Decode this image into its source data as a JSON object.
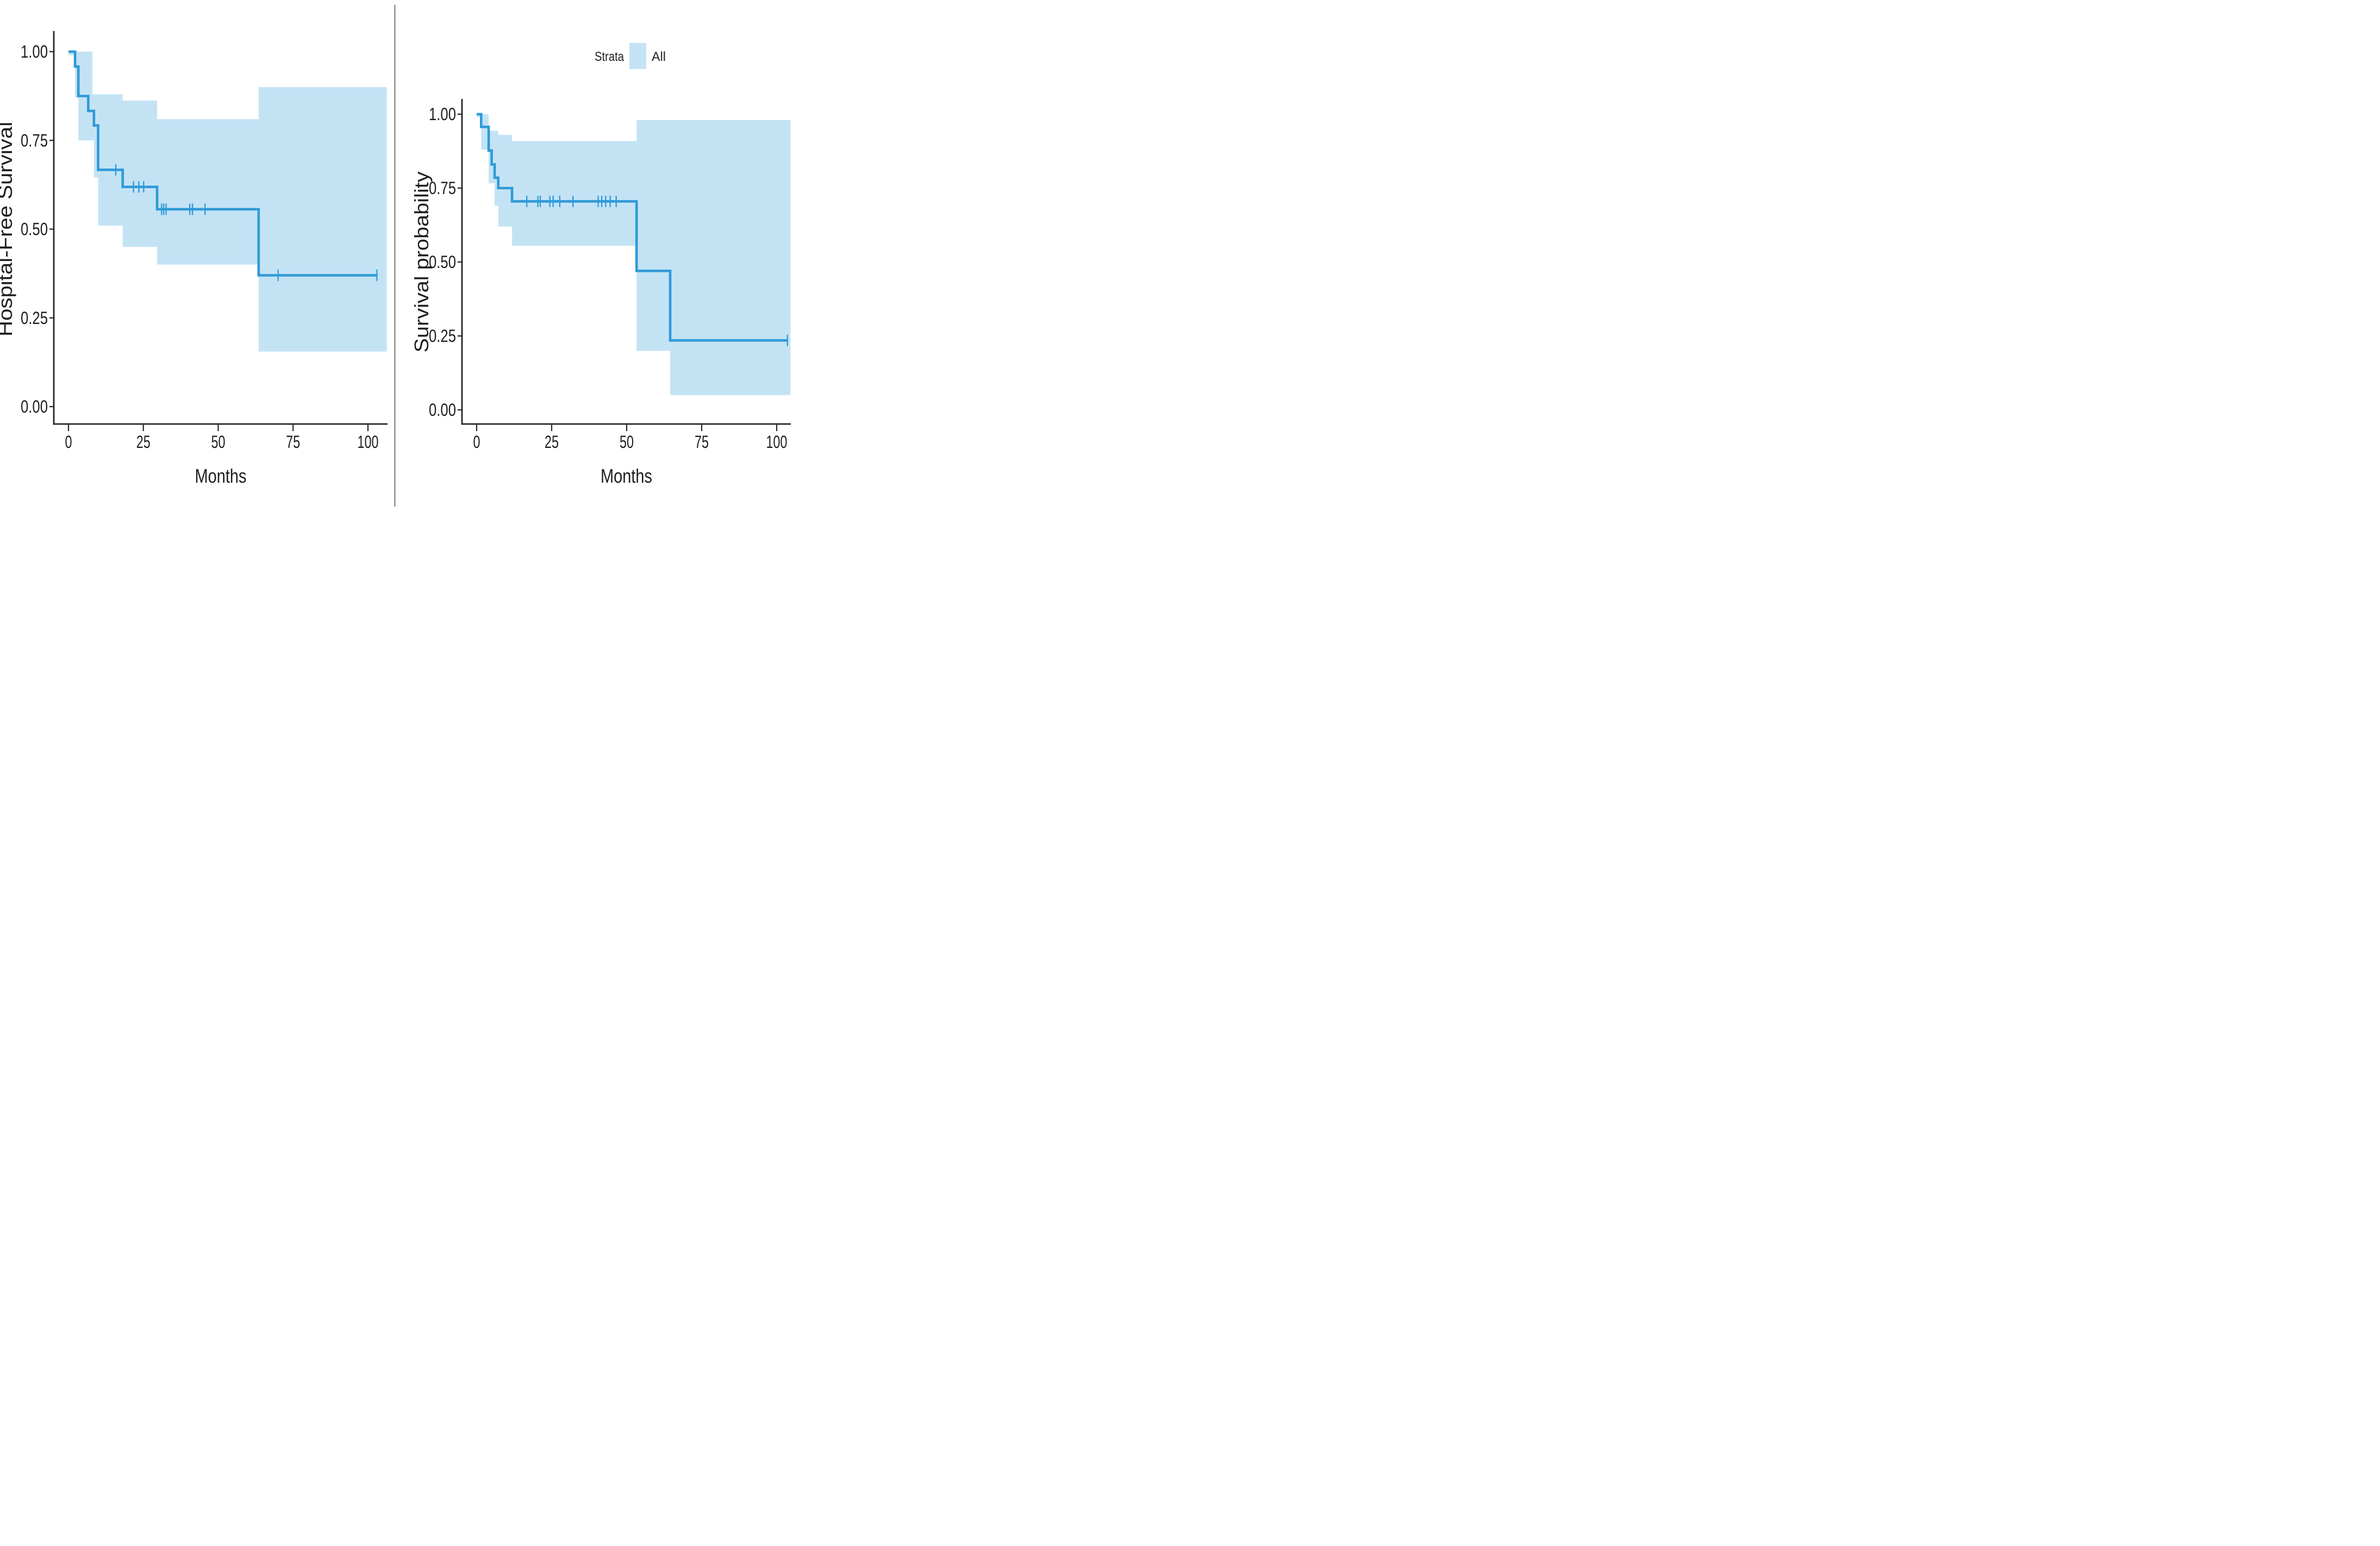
{
  "figure": {
    "background": "#ffffff",
    "divider_color": "#6a6a6a",
    "axis_color": "#262626",
    "text_color": "#1e1e1e"
  },
  "legend": {
    "title": "Strata",
    "position": "top-right",
    "items": [
      {
        "label": "All",
        "color": "#c3e3f5"
      }
    ]
  },
  "chart_data": [
    {
      "type": "line",
      "subtype": "kaplan-meier-step",
      "title": "",
      "xlabel": "Months",
      "ylabel": "Hospital-Free Survival",
      "xlim": [
        0,
        104
      ],
      "ylim": [
        0,
        1
      ],
      "xticks": [
        0,
        25,
        50,
        75,
        100
      ],
      "xtick_labels": [
        "0",
        "25",
        "50",
        "75",
        "100"
      ],
      "yticks": [
        0,
        0.25,
        0.5,
        0.75,
        1
      ],
      "ytick_labels": [
        "0.00",
        "0.25",
        "0.50",
        "0.75",
        "1.00"
      ],
      "grid": false,
      "legend_shown": false,
      "series": [
        {
          "name": "All",
          "color": "#2f9ad7",
          "ci_color": "#c3e3f5",
          "end_time": 103,
          "band_end_time": 106.3,
          "steps": [
            [
              0,
              1.0
            ],
            [
              2.2,
              0.958
            ],
            [
              3.3,
              0.875
            ],
            [
              6.6,
              0.833
            ],
            [
              8.5,
              0.792
            ],
            [
              9.9,
              0.667
            ],
            [
              18.1,
              0.619
            ],
            [
              29.6,
              0.556
            ],
            [
              63.5,
              0.37
            ]
          ],
          "censors": [
            [
              15.8,
              0.667
            ],
            [
              21.7,
              0.619
            ],
            [
              23.5,
              0.619
            ],
            [
              25.1,
              0.619
            ],
            [
              31.1,
              0.556
            ],
            [
              31.8,
              0.556
            ],
            [
              32.6,
              0.556
            ],
            [
              40.5,
              0.556
            ],
            [
              41.4,
              0.556
            ],
            [
              45.6,
              0.556
            ],
            [
              70,
              0.37
            ],
            [
              103,
              0.37
            ]
          ],
          "ci_upper": [
            [
              0,
              1.0
            ],
            [
              8,
              0.88
            ],
            [
              18.1,
              0.862
            ],
            [
              29.6,
              0.81
            ],
            [
              63.5,
              0.9
            ]
          ],
          "ci_lower": [
            [
              0,
              0.99
            ],
            [
              2.2,
              0.87
            ],
            [
              3.3,
              0.75
            ],
            [
              8.5,
              0.645
            ],
            [
              9.9,
              0.51
            ],
            [
              18.1,
              0.45
            ],
            [
              29.6,
              0.4
            ],
            [
              63.5,
              0.155
            ]
          ]
        }
      ]
    },
    {
      "type": "line",
      "subtype": "kaplan-meier-step",
      "title": "",
      "xlabel": "Months",
      "ylabel": "Survival probability",
      "xlim": [
        0,
        104
      ],
      "ylim": [
        0,
        1
      ],
      "xticks": [
        0,
        25,
        50,
        75,
        100
      ],
      "xtick_labels": [
        "0",
        "25",
        "50",
        "75",
        "100"
      ],
      "yticks": [
        0,
        0.25,
        0.5,
        0.75,
        1
      ],
      "ytick_labels": [
        "0.00",
        "0.25",
        "0.50",
        "0.75",
        "1.00"
      ],
      "grid": false,
      "legend_shown": true,
      "series": [
        {
          "name": "All",
          "color": "#2f9ad7",
          "ci_color": "#c3e3f5",
          "end_time": 103.6,
          "band_end_time": 104.6,
          "steps": [
            [
              0,
              1.0
            ],
            [
              1.5,
              0.957
            ],
            [
              4.0,
              0.877
            ],
            [
              5.0,
              0.83
            ],
            [
              6.0,
              0.785
            ],
            [
              7.2,
              0.75
            ],
            [
              11.8,
              0.705
            ],
            [
              53.3,
              0.47
            ],
            [
              64.5,
              0.235
            ]
          ],
          "censors": [
            [
              16.7,
              0.705
            ],
            [
              20.4,
              0.705
            ],
            [
              21.2,
              0.705
            ],
            [
              24.4,
              0.705
            ],
            [
              25.5,
              0.705
            ],
            [
              27.7,
              0.705
            ],
            [
              32.1,
              0.705
            ],
            [
              40.5,
              0.705
            ],
            [
              41.7,
              0.705
            ],
            [
              43,
              0.705
            ],
            [
              44.5,
              0.705
            ],
            [
              46.5,
              0.705
            ],
            [
              103.6,
              0.235
            ]
          ],
          "ci_upper": [
            [
              0,
              1.0
            ],
            [
              4.0,
              0.944
            ],
            [
              7.2,
              0.93
            ],
            [
              11.8,
              0.909
            ],
            [
              53.3,
              0.98
            ]
          ],
          "ci_lower": [
            [
              0,
              0.99
            ],
            [
              1.5,
              0.88
            ],
            [
              4.0,
              0.766
            ],
            [
              6.0,
              0.69
            ],
            [
              7.2,
              0.62
            ],
            [
              11.8,
              0.555
            ],
            [
              53.3,
              0.2
            ],
            [
              64.5,
              0.05
            ]
          ]
        }
      ]
    }
  ]
}
